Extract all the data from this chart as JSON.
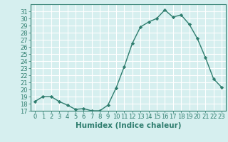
{
  "x": [
    0,
    1,
    2,
    3,
    4,
    5,
    6,
    7,
    8,
    9,
    10,
    11,
    12,
    13,
    14,
    15,
    16,
    17,
    18,
    19,
    20,
    21,
    22,
    23
  ],
  "y": [
    18.3,
    19.0,
    19.0,
    18.3,
    17.8,
    17.2,
    17.3,
    17.0,
    17.0,
    17.8,
    20.2,
    23.2,
    26.5,
    28.8,
    29.5,
    30.0,
    31.2,
    30.2,
    30.5,
    29.2,
    27.2,
    24.5,
    21.5,
    20.3
  ],
  "line_color": "#2e7d6e",
  "marker": "D",
  "markersize": 2.2,
  "linewidth": 1.0,
  "xlabel": "Humidex (Indice chaleur)",
  "xlim": [
    -0.5,
    23.5
  ],
  "ylim": [
    17,
    32
  ],
  "yticks": [
    17,
    18,
    19,
    20,
    21,
    22,
    23,
    24,
    25,
    26,
    27,
    28,
    29,
    30,
    31
  ],
  "xticks": [
    0,
    1,
    2,
    3,
    4,
    5,
    6,
    7,
    8,
    9,
    10,
    11,
    12,
    13,
    14,
    15,
    16,
    17,
    18,
    19,
    20,
    21,
    22,
    23
  ],
  "bg_color": "#d6efef",
  "grid_color": "#ffffff",
  "text_color": "#2e7d6e",
  "xlabel_fontsize": 7.5,
  "tick_fontsize": 6.0
}
